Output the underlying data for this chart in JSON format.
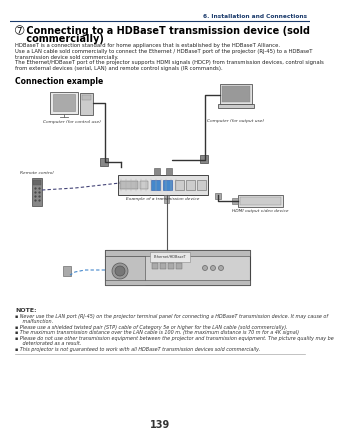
{
  "bg_color": "#ffffff",
  "header_line_color": "#1a3a6b",
  "header_text": "6. Installation and Connections",
  "header_text_color": "#1a3a6b",
  "title_bullet": "➆",
  "title_line1": " Connecting to a HDBaseT transmission device (sold",
  "title_line2": " commercially)",
  "title_color": "#000000",
  "body_lines": [
    "HDBaseT is a connection standard for home appliances that is established by the HDBaseT Alliance.",
    "Use a LAN cable sold commercially to connect the Ethernet / HDBaseT port of the projector (RJ-45) to a HDBaseT",
    "transmission device sold commercially.",
    "The Ethernet/HDBaseT port of the projector supports HDMI signals (HDCP) from transmission devices, control signals",
    "from external devices (serial, LAN) and remote control signals (IR commands)."
  ],
  "body_color": "#222222",
  "section_label": "Connection example",
  "section_label_color": "#000000",
  "notes_header": "NOTE:",
  "notes": [
    "■  Never use the LAN port (RJ-45) on the projector terminal panel for connecting a HDBaseT transmission device. It may cause of",
    "   malfunction.",
    "■  Please use a shielded twisted pair (STP) cable of Category 5e or higher for the LAN cable (sold commercially).",
    "■  The maximum transmission distance over the LAN cable is 100 m. (the maximum distance is 70 m for a 4K signal)",
    "■  Please do not use other transmission equipment between the projector and transmission equipment. The picture quality may be",
    "   deteriorated as a result.",
    "■  This projector is not guaranteed to work with all HDBaseT transmission devices sold commercially."
  ],
  "notes_color": "#333333",
  "page_number": "139",
  "page_number_color": "#333333",
  "line_bottom_color": "#888888"
}
